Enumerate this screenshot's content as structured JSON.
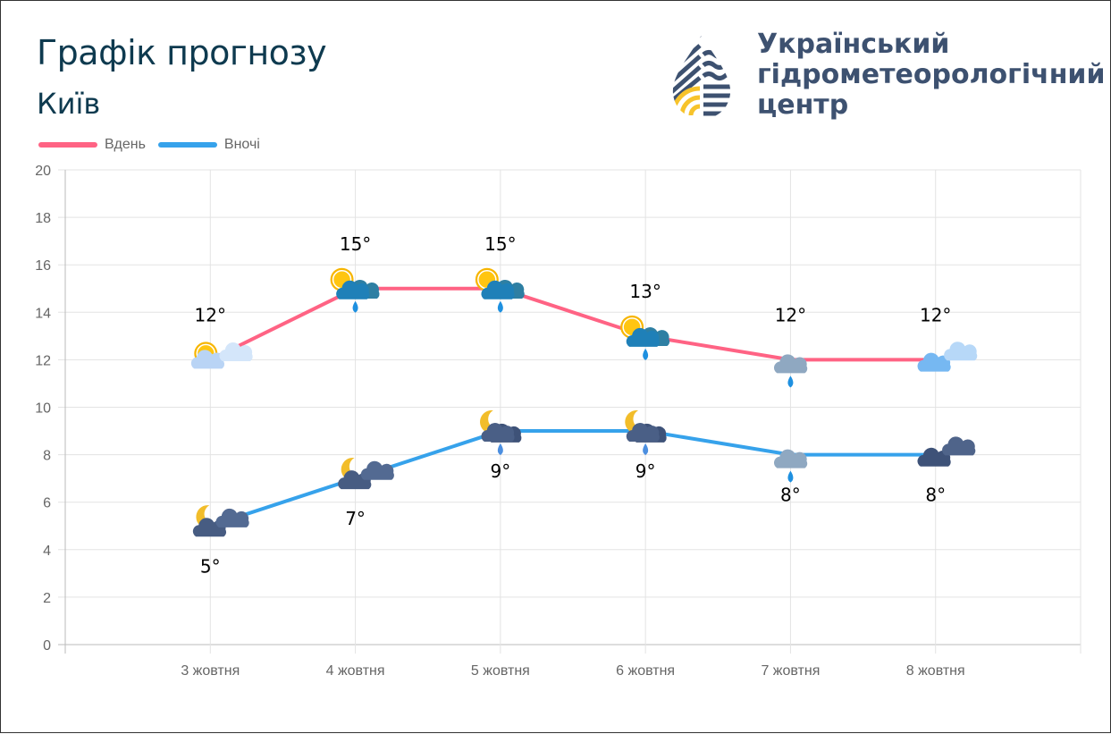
{
  "header": {
    "title": "Графік прогнозу",
    "city": "Київ"
  },
  "logo": {
    "lines": [
      "Український",
      "гідрометеорологічний",
      "центр"
    ],
    "colors": {
      "navy": "#3d5170",
      "yellow": "#f7c32b"
    }
  },
  "chart_data": {
    "type": "line",
    "categories": [
      "3 жовтня",
      "4 жовтня",
      "5 жовтня",
      "6 жовтня",
      "7 жовтня",
      "8 жовтня"
    ],
    "ylim": [
      0,
      20
    ],
    "yticks": [
      0,
      2,
      4,
      6,
      8,
      10,
      12,
      14,
      16,
      18,
      20
    ],
    "grid": true,
    "legend_position": "top-left",
    "series": [
      {
        "name": "Вдень",
        "color": "#ff6384",
        "values": [
          12,
          15,
          15,
          13,
          12,
          12
        ],
        "labels": [
          "12°",
          "15°",
          "15°",
          "13°",
          "12°",
          "12°"
        ],
        "icons": [
          "sun-light-cloud-icon",
          "sun-cloud-rain-icon",
          "sun-cloud-rain-icon",
          "sun-cloud-rain-icon",
          "grey-cloud-rain-icon",
          "light-blue-clouds-icon"
        ]
      },
      {
        "name": "Вночі",
        "color": "#36a2eb",
        "values": [
          5,
          7,
          9,
          9,
          8,
          8
        ],
        "labels": [
          "5°",
          "7°",
          "9°",
          "9°",
          "8°",
          "8°"
        ],
        "icons": [
          "moon-dark-cloud-icon",
          "moon-dark-cloud-icon",
          "moon-cloud-rain-icon",
          "moon-cloud-rain-icon",
          "grey-cloud-rain-icon",
          "dark-clouds-icon"
        ]
      }
    ]
  }
}
